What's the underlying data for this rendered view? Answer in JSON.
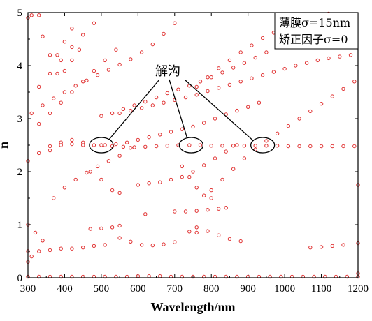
{
  "chart_data": {
    "type": "scatter",
    "xlabel": "Wavelength/nm",
    "ylabel": "n",
    "xlim": [
      300,
      1200
    ],
    "ylim": [
      0,
      5
    ],
    "xticks": [
      300,
      400,
      500,
      600,
      700,
      800,
      900,
      1000,
      1100,
      1200
    ],
    "yticks": [
      0,
      1,
      2,
      3,
      4,
      5
    ],
    "grid": false,
    "marker": "circle",
    "marker_color": "#e03030",
    "legend_box": {
      "line1": "薄膜σ=15nm",
      "line2": "矫正因子σ=0",
      "placement": "top-right"
    },
    "annotation": {
      "label": "解沟",
      "ellipses": [
        {
          "cx": 500,
          "cy": 2.5
        },
        {
          "cx": 745,
          "cy": 2.5
        },
        {
          "cx": 940,
          "cy": 2.5
        }
      ]
    },
    "series": [
      {
        "points": [
          [
            300,
            0.02
          ],
          [
            330,
            0.02
          ],
          [
            360,
            0.02
          ],
          [
            390,
            0.02
          ],
          [
            420,
            0.02
          ],
          [
            450,
            0.02
          ],
          [
            480,
            0.02
          ],
          [
            510,
            0.02
          ],
          [
            540,
            0.02
          ],
          [
            570,
            0.02
          ],
          [
            600,
            0.03
          ],
          [
            630,
            0.03
          ],
          [
            660,
            0.03
          ],
          [
            690,
            0.02
          ],
          [
            720,
            0.02
          ],
          [
            750,
            0.02
          ],
          [
            780,
            0.02
          ],
          [
            810,
            0.02
          ],
          [
            840,
            0.02
          ],
          [
            870,
            0.02
          ],
          [
            900,
            0.02
          ],
          [
            930,
            0.02
          ],
          [
            960,
            0.02
          ],
          [
            990,
            0.02
          ],
          [
            1020,
            0.02
          ],
          [
            1050,
            0.02
          ],
          [
            1080,
            0.02
          ],
          [
            1110,
            0.02
          ],
          [
            1140,
            0.02
          ],
          [
            1170,
            0.02
          ],
          [
            1200,
            0.02
          ]
        ]
      },
      {
        "points": [
          [
            500,
            2.5
          ],
          [
            530,
            2.48
          ],
          [
            560,
            2.47
          ],
          [
            590,
            2.46
          ],
          [
            620,
            2.47
          ],
          [
            650,
            2.48
          ],
          [
            680,
            2.49
          ],
          [
            710,
            2.5
          ],
          [
            740,
            2.5
          ],
          [
            770,
            2.5
          ],
          [
            800,
            2.49
          ],
          [
            830,
            2.49
          ],
          [
            860,
            2.49
          ],
          [
            890,
            2.49
          ],
          [
            920,
            2.49
          ],
          [
            950,
            2.49
          ],
          [
            980,
            2.49
          ],
          [
            1010,
            2.48
          ],
          [
            1040,
            2.48
          ],
          [
            1070,
            2.48
          ],
          [
            1100,
            2.48
          ],
          [
            1130,
            2.48
          ],
          [
            1160,
            2.48
          ],
          [
            1190,
            2.48
          ]
        ]
      },
      {
        "points": [
          [
            300,
            2.2
          ],
          [
            330,
            2.35
          ],
          [
            360,
            2.48
          ],
          [
            390,
            2.55
          ],
          [
            420,
            2.6
          ],
          [
            450,
            2.55
          ],
          [
            480,
            2.5
          ],
          [
            510,
            2.5
          ],
          [
            540,
            2.52
          ],
          [
            570,
            2.55
          ],
          [
            600,
            2.6
          ],
          [
            630,
            2.65
          ],
          [
            660,
            2.7
          ],
          [
            690,
            2.75
          ],
          [
            720,
            2.8
          ],
          [
            750,
            2.85
          ],
          [
            780,
            2.92
          ],
          [
            810,
            3.0
          ],
          [
            840,
            3.08
          ],
          [
            870,
            3.15
          ],
          [
            900,
            3.22
          ],
          [
            930,
            3.3
          ]
        ]
      },
      {
        "points": [
          [
            310,
            3.1
          ],
          [
            340,
            3.25
          ],
          [
            370,
            3.38
          ],
          [
            400,
            3.5
          ],
          [
            430,
            3.62
          ],
          [
            460,
            3.72
          ],
          [
            490,
            3.82
          ],
          [
            520,
            3.92
          ],
          [
            550,
            4.02
          ],
          [
            580,
            4.12
          ],
          [
            610,
            4.25
          ],
          [
            640,
            4.4
          ],
          [
            670,
            4.6
          ],
          [
            700,
            4.8
          ]
        ]
      },
      {
        "points": [
          [
            330,
            3.6
          ],
          [
            360,
            3.85
          ],
          [
            390,
            4.1
          ],
          [
            420,
            4.35
          ],
          [
            450,
            4.58
          ],
          [
            480,
            4.8
          ]
        ]
      },
      {
        "points": [
          [
            330,
            2.9
          ],
          [
            360,
            3.1
          ],
          [
            390,
            3.3
          ],
          [
            420,
            3.5
          ],
          [
            450,
            3.7
          ],
          [
            480,
            3.9
          ],
          [
            510,
            4.1
          ],
          [
            540,
            4.3
          ]
        ]
      },
      {
        "points": [
          [
            500,
            3.05
          ],
          [
            530,
            3.1
          ],
          [
            560,
            3.18
          ],
          [
            590,
            3.25
          ],
          [
            620,
            3.32
          ],
          [
            650,
            3.4
          ],
          [
            680,
            3.48
          ],
          [
            710,
            3.55
          ],
          [
            740,
            3.62
          ],
          [
            770,
            3.7
          ],
          [
            800,
            3.78
          ],
          [
            830,
            3.87
          ],
          [
            860,
            3.96
          ],
          [
            890,
            4.05
          ],
          [
            920,
            4.15
          ],
          [
            950,
            4.25
          ],
          [
            980,
            4.37
          ],
          [
            1010,
            4.5
          ],
          [
            1040,
            4.62
          ],
          [
            1070,
            4.75
          ],
          [
            1100,
            4.88
          ],
          [
            1120,
            4.98
          ]
        ]
      },
      {
        "points": [
          [
            550,
            3.1
          ],
          [
            580,
            3.15
          ],
          [
            610,
            3.2
          ],
          [
            640,
            3.25
          ],
          [
            670,
            3.3
          ],
          [
            700,
            3.35
          ],
          [
            730,
            3.4
          ],
          [
            760,
            3.45
          ],
          [
            790,
            3.52
          ],
          [
            820,
            3.58
          ],
          [
            850,
            3.64
          ],
          [
            880,
            3.7
          ],
          [
            910,
            3.76
          ],
          [
            940,
            3.82
          ],
          [
            970,
            3.88
          ],
          [
            1000,
            3.94
          ],
          [
            1030,
            4.0
          ],
          [
            1060,
            4.05
          ],
          [
            1090,
            4.1
          ],
          [
            1120,
            4.14
          ],
          [
            1150,
            4.17
          ],
          [
            1180,
            4.2
          ]
        ]
      },
      {
        "points": [
          [
            760,
            3.6
          ],
          [
            790,
            3.78
          ],
          [
            820,
            3.95
          ],
          [
            850,
            4.1
          ],
          [
            880,
            4.25
          ],
          [
            910,
            4.38
          ],
          [
            940,
            4.52
          ],
          [
            970,
            4.62
          ],
          [
            1000,
            4.72
          ],
          [
            1030,
            4.82
          ],
          [
            1060,
            4.9
          ],
          [
            1090,
            4.97
          ]
        ]
      },
      {
        "points": [
          [
            370,
            1.5
          ],
          [
            400,
            1.7
          ],
          [
            430,
            1.85
          ],
          [
            460,
            1.98
          ],
          [
            490,
            2.1
          ],
          [
            520,
            2.2
          ],
          [
            550,
            2.3
          ],
          [
            580,
            2.45
          ]
        ]
      },
      {
        "points": [
          [
            360,
            2.4
          ],
          [
            390,
            2.5
          ],
          [
            420,
            2.52
          ],
          [
            450,
            2.5
          ]
        ]
      },
      {
        "points": [
          [
            470,
            2.0
          ],
          [
            500,
            1.85
          ],
          [
            530,
            1.65
          ],
          [
            550,
            1.6
          ]
        ]
      },
      {
        "points": [
          [
            600,
            1.75
          ],
          [
            630,
            1.78
          ],
          [
            660,
            1.8
          ],
          [
            690,
            1.85
          ],
          [
            720,
            1.9
          ],
          [
            750,
            2.0
          ],
          [
            780,
            2.12
          ],
          [
            810,
            2.25
          ],
          [
            840,
            2.38
          ],
          [
            870,
            2.5
          ]
        ]
      },
      {
        "points": [
          [
            720,
            2.1
          ],
          [
            740,
            1.9
          ],
          [
            760,
            1.7
          ],
          [
            780,
            1.55
          ],
          [
            800,
            1.5
          ]
        ]
      },
      {
        "points": [
          [
            800,
            1.65
          ],
          [
            830,
            1.85
          ],
          [
            860,
            2.05
          ],
          [
            890,
            2.25
          ],
          [
            920,
            2.42
          ],
          [
            950,
            2.58
          ],
          [
            980,
            2.72
          ],
          [
            1010,
            2.86
          ],
          [
            1040,
            3.0
          ],
          [
            1070,
            3.14
          ],
          [
            1100,
            3.28
          ],
          [
            1130,
            3.42
          ],
          [
            1160,
            3.56
          ],
          [
            1190,
            3.7
          ]
        ]
      },
      {
        "points": [
          [
            700,
            1.25
          ],
          [
            730,
            1.25
          ],
          [
            760,
            1.26
          ],
          [
            790,
            1.28
          ],
          [
            820,
            1.3
          ],
          [
            840,
            1.32
          ]
        ]
      },
      {
        "points": [
          [
            470,
            0.92
          ],
          [
            500,
            0.93
          ],
          [
            530,
            0.95
          ],
          [
            550,
            0.98
          ]
        ]
      },
      {
        "points": [
          [
            550,
            0.75
          ],
          [
            580,
            0.68
          ],
          [
            610,
            0.62
          ],
          [
            640,
            0.61
          ],
          [
            670,
            0.63
          ],
          [
            700,
            0.67
          ]
        ]
      },
      {
        "points": [
          [
            300,
            0.5
          ],
          [
            330,
            0.5
          ],
          [
            360,
            0.52
          ],
          [
            390,
            0.55
          ],
          [
            420,
            0.55
          ],
          [
            450,
            0.57
          ],
          [
            480,
            0.6
          ],
          [
            510,
            0.62
          ]
        ]
      },
      {
        "points": [
          [
            760,
            0.95
          ],
          [
            790,
            0.88
          ],
          [
            820,
            0.8
          ],
          [
            850,
            0.73
          ],
          [
            880,
            0.69
          ]
        ]
      },
      {
        "points": [
          [
            1070,
            0.57
          ],
          [
            1100,
            0.58
          ],
          [
            1130,
            0.6
          ],
          [
            1160,
            0.62
          ]
        ]
      },
      {
        "points": [
          [
            620,
            1.2
          ]
        ]
      },
      {
        "points": [
          [
            740,
            0.87
          ],
          [
            760,
            0.85
          ]
        ]
      },
      {
        "points": [
          [
            300,
            4.9
          ],
          [
            310,
            4.95
          ],
          [
            330,
            4.95
          ]
        ]
      },
      {
        "points": [
          [
            340,
            4.55
          ],
          [
            360,
            4.2
          ],
          [
            380,
            3.85
          ]
        ]
      },
      {
        "points": [
          [
            420,
            4.7
          ],
          [
            400,
            4.45
          ],
          [
            380,
            4.2
          ]
        ]
      },
      {
        "points": [
          [
            440,
            4.3
          ],
          [
            420,
            4.1
          ],
          [
            400,
            3.9
          ]
        ]
      },
      {
        "points": [
          [
            300,
            1.0
          ],
          [
            320,
            0.85
          ],
          [
            340,
            0.7
          ]
        ]
      },
      {
        "points": [
          [
            300,
            0.3
          ],
          [
            310,
            0.4
          ]
        ]
      },
      {
        "points": [
          [
            1200,
            0.08
          ],
          [
            1200,
            0.65
          ],
          [
            1200,
            1.75
          ]
        ]
      }
    ]
  }
}
